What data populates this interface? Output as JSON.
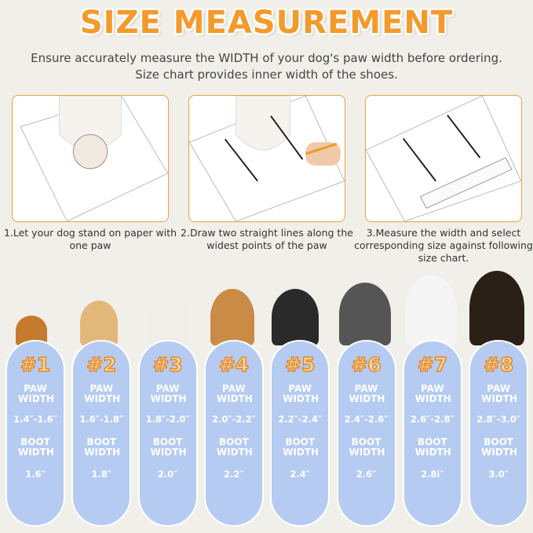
{
  "title": "SIZE MEASUREMENT",
  "subtitle": [
    "Ensure accurately measure the WIDTH of your dog's paw width before ordering.",
    "Size chart provides inner width of the shoes."
  ],
  "steps": [
    {
      "caption": "1.Let your dog stand on paper with one paw"
    },
    {
      "caption": "2.Draw two straight lines along the widest points of the paw"
    },
    {
      "caption": "3.Measure the width and select corresponding size against following size chart."
    }
  ],
  "colors": {
    "accent": "#f49a2c",
    "pill": "#b5cbf2",
    "background": "#f0efea"
  },
  "sizes": [
    {
      "size": "#1",
      "paw_label": "PAW WIDTH",
      "paw": "1.4″-1.6″",
      "boot_label": "BOOT WIDTH",
      "boot": "1.6″"
    },
    {
      "size": "#2",
      "paw_label": "PAW WIDTH",
      "paw": "1.6″-1.8″",
      "boot_label": "BOOT WIDTH",
      "boot": "1.8″"
    },
    {
      "size": "#3",
      "paw_label": "PAW WIDTH",
      "paw": "1.8″-2.0″",
      "boot_label": "BOOT WIDTH",
      "boot": "2.0″"
    },
    {
      "size": "#4",
      "paw_label": "PAW WIDTH",
      "paw": "2.0″-2.2″",
      "boot_label": "BOOT WIDTH",
      "boot": "2.2″"
    },
    {
      "size": "#5",
      "paw_label": "PAW WIDTH",
      "paw": "2.2″-2.4″",
      "boot_label": "BOOT WIDTH",
      "boot": "2.4″"
    },
    {
      "size": "#6",
      "paw_label": "PAW WIDTH",
      "paw": "2.4″-2.6″",
      "boot_label": "BOOT WIDTH",
      "boot": "2.6″"
    },
    {
      "size": "#7",
      "paw_label": "PAW WIDTH",
      "paw": "2.6″-2.8″",
      "boot_label": "BOOT WIDTH",
      "boot": "2.8i″"
    },
    {
      "size": "#8",
      "paw_label": "PAW WIDTH",
      "paw": "2.8″-3.0″",
      "boot_label": "BOOT WIDTH",
      "boot": "3.0″"
    }
  ]
}
